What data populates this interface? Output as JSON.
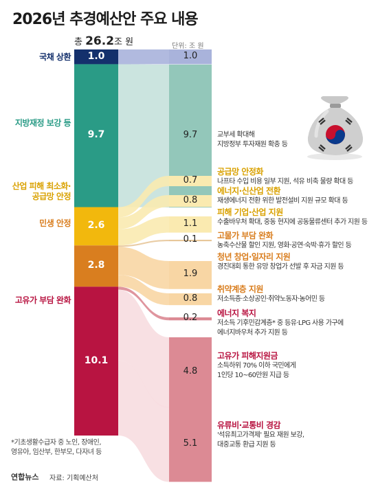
{
  "title": "2026년 추경예산안 주요 내용",
  "total": {
    "prefix": "총 ",
    "value": "26.2",
    "suffix": "조 원"
  },
  "unit": "단위: 조 원",
  "footnote": [
    "*기초생활수급자 중 노인, 장애인,",
    "영유아, 임산부, 한부모, 다자녀 등"
  ],
  "logo": "연합뉴스",
  "source": "자료: 기획예산처",
  "colors": {
    "debt": "#14306c",
    "local": "#2a9b86",
    "industry": "#f2b80d",
    "livelihood": "#d97e1f",
    "oil": "#b81441",
    "pink": "#e6a6ac",
    "lavender": "#a9b3db",
    "teal_light": "#c5e1db",
    "teal_mid": "#93c7ba",
    "yellow_light": "#faeab0",
    "orange_light": "#f8d6a4",
    "pink_light": "#f7dde0",
    "oil_mid": "#dc8a94"
  },
  "icons": [
    "money-bag-icon",
    "taegeuk-icon"
  ],
  "chart_data": {
    "type": "sankey",
    "title": "2026년 추경예산안 주요 내용",
    "unit": "조 원",
    "total": 26.2,
    "categories": [
      {
        "key": "debt",
        "name": "국채 상환",
        "value": 1.0
      },
      {
        "key": "local",
        "name": "지방재정 보강 등",
        "value": 9.7
      },
      {
        "key": "industry",
        "name": "산업 피해 최소화·공급망 안정",
        "value": 2.6
      },
      {
        "key": "livelihood",
        "name": "민생 안정",
        "value": 2.8
      },
      {
        "key": "oil",
        "name": "고유가 부담 완화",
        "value": 10.1
      }
    ],
    "items": [
      {
        "category": "debt",
        "title": "",
        "value": 1.0,
        "description": []
      },
      {
        "category": "local",
        "title": "",
        "value": 9.7,
        "description": [
          "교부세 확대해",
          "지방정부 투자재원 확충 등"
        ]
      },
      {
        "category": "industry",
        "title": "공급망 안정화",
        "value": 0.7,
        "description": [
          "나프타 수입 비용 일부 지원, 석유 비축 물량 확대 등"
        ]
      },
      {
        "category": "industry",
        "title": "에너지·신산업 전환",
        "value": 0.8,
        "description": [
          "재생에너지 전환 위한 발전설비 지원 규모 확대 등"
        ]
      },
      {
        "category": "industry",
        "title": "피해 기업·산업 지원",
        "value": 1.1,
        "description": [
          "수출바우처 확대, 중동 현지에 공동물류센터 추가 지원 등"
        ]
      },
      {
        "category": "livelihood",
        "title": "고물가 부담 완화",
        "value": 0.1,
        "description": [
          "농축수산물 할인 지원, 영화·공연·숙박·휴가 할인 등"
        ]
      },
      {
        "category": "livelihood",
        "title": "청년 창업·일자리 지원",
        "value": 1.9,
        "description": [
          "경진대회 통한 유망 창업가 선발 후 자금 지원 등"
        ]
      },
      {
        "category": "livelihood",
        "title": "취약계층 지원",
        "value": 0.8,
        "description": [
          "저소득층·소상공인·취약노동자·농어민 등"
        ]
      },
      {
        "category": "oil",
        "title": "에너지 복지",
        "value": 0.2,
        "description": [
          "저소득 기후민감계층* 중 등유·LPG 사용 가구에",
          "에너지바우처 추가 지원 등"
        ]
      },
      {
        "category": "oil",
        "title": "고유가 피해지원금",
        "value": 4.8,
        "description": [
          "소득하위 70% 이하 국민에게",
          "1인당 10~60만원 지급 등"
        ]
      },
      {
        "category": "oil",
        "title": "유류비·교통비 경감",
        "value": 5.1,
        "description": [
          "'석유최고가격제' 필요 재원 보강,",
          "대중교통 환급 지원 등"
        ]
      }
    ]
  }
}
